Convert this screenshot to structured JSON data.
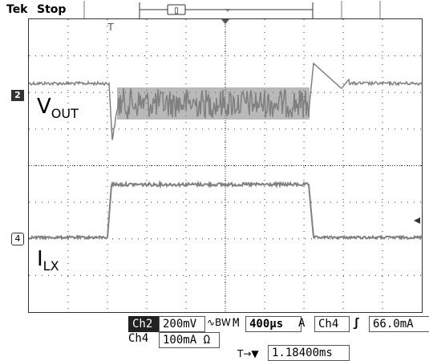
{
  "header": {
    "brand": "Tek",
    "mode": "Stop"
  },
  "labels": {
    "vout_main": "V",
    "vout_sub": "OUT",
    "ilx_main": "I",
    "ilx_sub": "LX"
  },
  "markers": {
    "ch2": "2",
    "ch4": "4",
    "trigger": "T"
  },
  "bottom": {
    "ch2_label": "Ch2",
    "ch2_scale": "200mV",
    "ch2_coupling_symbol": "∿BW",
    "timebase_prefix": "M",
    "timebase": "400µs",
    "trigger_source_prefix": "A",
    "trigger_source": "Ch4",
    "trigger_slope_symbol": "ʃ",
    "trigger_level": "66.0mA",
    "ch4_label": "Ch4",
    "ch4_scale": "100mA",
    "ch4_impedance_symbol": "Ω",
    "trigger_position_symbol": "T→▼",
    "trigger_position": "1.18400ms"
  },
  "colors": {
    "trace": "#808080",
    "grid": "#333333"
  }
}
